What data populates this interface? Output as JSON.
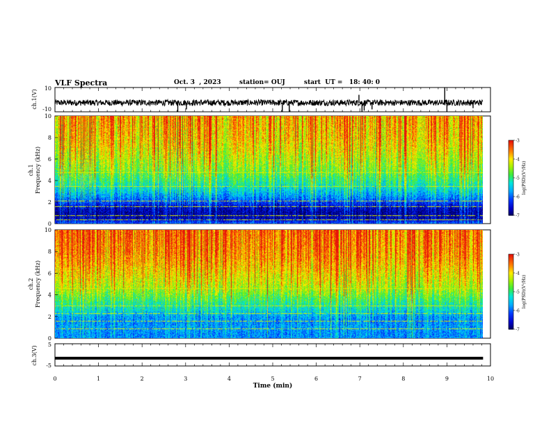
{
  "header": {
    "title": "VLF Spectra",
    "date": "Oct. 3  , 2023",
    "station": "station= OUJ",
    "start": "start  UT =   18: 40: 0"
  },
  "chart_data": [
    {
      "type": "line",
      "panel": "ch1-waveform",
      "ylabel": "ch.1(V)",
      "yticks": [
        "10",
        "-10"
      ],
      "ylim": [
        -10,
        10
      ],
      "xlim": [
        0,
        10
      ],
      "xticks": [
        0,
        1,
        2,
        3,
        4,
        5,
        6,
        7,
        8,
        9,
        10
      ],
      "data_end": 9.83,
      "baseline": -2.5,
      "noise_amplitude": 2.5,
      "spikes": [
        {
          "x": 2.82,
          "y": -10
        },
        {
          "x": 3.02,
          "y": -8
        },
        {
          "x": 5.22,
          "y": -10
        },
        {
          "x": 5.38,
          "y": -10
        },
        {
          "x": 6.98,
          "y": 4
        },
        {
          "x": 7.05,
          "y": -10
        },
        {
          "x": 7.1,
          "y": -9
        },
        {
          "x": 7.28,
          "y": -8
        },
        {
          "x": 8.95,
          "y": 10
        },
        {
          "x": 9.0,
          "y": -10
        },
        {
          "x": 9.6,
          "y": -7
        }
      ]
    },
    {
      "type": "heatmap",
      "panel": "ch1-spectrogram",
      "ylabel": "ch.1 Frequency (kHz)",
      "ylim": [
        0,
        10
      ],
      "yticks": [
        "0",
        "2",
        "4",
        "6",
        "8",
        "10"
      ],
      "xlim": [
        0,
        10
      ],
      "data_end": 9.83,
      "colorbar": {
        "label": "log(PSD)(V²/Hz)",
        "range": [
          -7,
          -3
        ],
        "ticks": [
          "-3",
          "-4",
          "-5",
          "-6",
          "-7"
        ]
      },
      "profile_khz": [
        0,
        0.5,
        1,
        1.5,
        2,
        2.5,
        3,
        3.5,
        4,
        4.5,
        5,
        6,
        7,
        8,
        9,
        10
      ],
      "profile_level": [
        0.25,
        0.08,
        0.06,
        0.1,
        0.2,
        0.3,
        0.38,
        0.45,
        0.5,
        0.55,
        0.6,
        0.66,
        0.72,
        0.76,
        0.78,
        0.8
      ],
      "lines_khz": [
        0.4,
        0.8,
        1.6,
        2.1,
        3.5,
        4.8
      ]
    },
    {
      "type": "heatmap",
      "panel": "ch2-spectrogram",
      "ylabel": "ch.2 Frequency (kHz)",
      "ylim": [
        0,
        10
      ],
      "yticks": [
        "0",
        "2",
        "4",
        "6",
        "8",
        "10"
      ],
      "xlim": [
        0,
        10
      ],
      "data_end": 9.83,
      "colorbar": {
        "label": "log(PSD)(V²/Hz)",
        "range": [
          -7,
          -3
        ],
        "ticks": [
          "-3",
          "-4",
          "-5",
          "-6",
          "-7"
        ]
      },
      "profile_khz": [
        0,
        0.5,
        1,
        1.5,
        2,
        2.5,
        3,
        3.5,
        4,
        4.5,
        5,
        6,
        7,
        8,
        9,
        10
      ],
      "profile_level": [
        0.3,
        0.3,
        0.32,
        0.3,
        0.32,
        0.4,
        0.46,
        0.52,
        0.58,
        0.64,
        0.68,
        0.74,
        0.8,
        0.84,
        0.86,
        0.88
      ],
      "lines_khz": [
        0.9,
        1.6,
        2.3,
        3.0,
        4.6
      ]
    },
    {
      "type": "line",
      "panel": "ch3-waveform",
      "ylabel": "ch.3(V)",
      "yticks": [
        "5",
        "-5"
      ],
      "ylim": [
        -5,
        5
      ],
      "xlim": [
        0,
        10
      ],
      "xticks": [
        0,
        1,
        2,
        3,
        4,
        5,
        6,
        7,
        8,
        9,
        10
      ],
      "xlabel": "Time  (min)",
      "data_end": 9.83,
      "constant_value": -1.5
    }
  ]
}
